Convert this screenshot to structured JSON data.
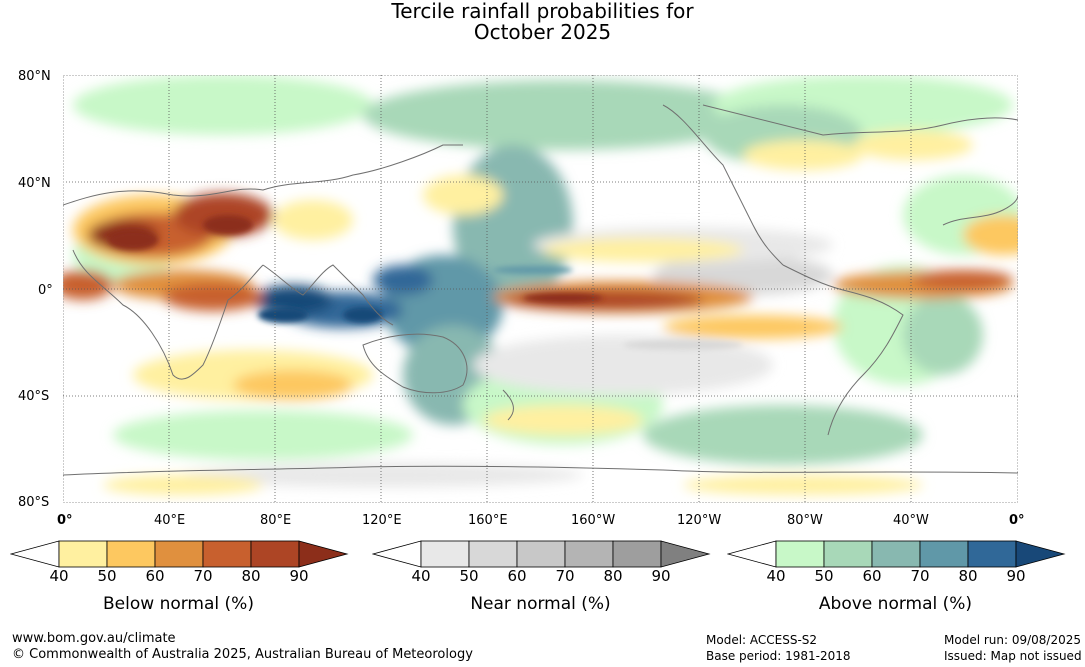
{
  "title": {
    "line1": "Tercile rainfall probabilities for",
    "line2": "October 2025"
  },
  "lat_labels": [
    "80°N",
    "40°N",
    "0°",
    "40°S",
    "80°S"
  ],
  "lon_labels": [
    "0°",
    "40°E",
    "80°E",
    "120°E",
    "160°E",
    "160°W",
    "120°W",
    "80°W",
    "40°W",
    "0°"
  ],
  "legends": [
    {
      "label": "Below normal (%)",
      "ticks": [
        "40",
        "50",
        "60",
        "70",
        "80",
        "90"
      ],
      "colors": [
        "#ffffff",
        "#fff0a0",
        "#fdc860",
        "#e0903e",
        "#c8602e",
        "#ad4525",
        "#8c2e1a"
      ]
    },
    {
      "label": "Near normal (%)",
      "ticks": [
        "40",
        "50",
        "60",
        "70",
        "80",
        "90"
      ],
      "colors": [
        "#ffffff",
        "#e8e8e8",
        "#d8d8d8",
        "#c8c8c8",
        "#b4b4b4",
        "#9e9e9e",
        "#808080"
      ]
    },
    {
      "label": "Above normal (%)",
      "ticks": [
        "40",
        "50",
        "60",
        "70",
        "80",
        "90"
      ],
      "colors": [
        "#ffffff",
        "#c8f8c8",
        "#a8d8b8",
        "#88b8b0",
        "#6098a8",
        "#306898",
        "#184878"
      ]
    }
  ],
  "footer": {
    "website": "www.bom.gov.au/climate",
    "copyright": "© Commonwealth of Australia 2025, Australian Bureau of Meteorology",
    "model": "Model: ACCESS-S2",
    "base_period": "Base period: 1981-2018",
    "model_run": "Model run: 09/08/2025",
    "issued": "Issued: Map not issued"
  }
}
